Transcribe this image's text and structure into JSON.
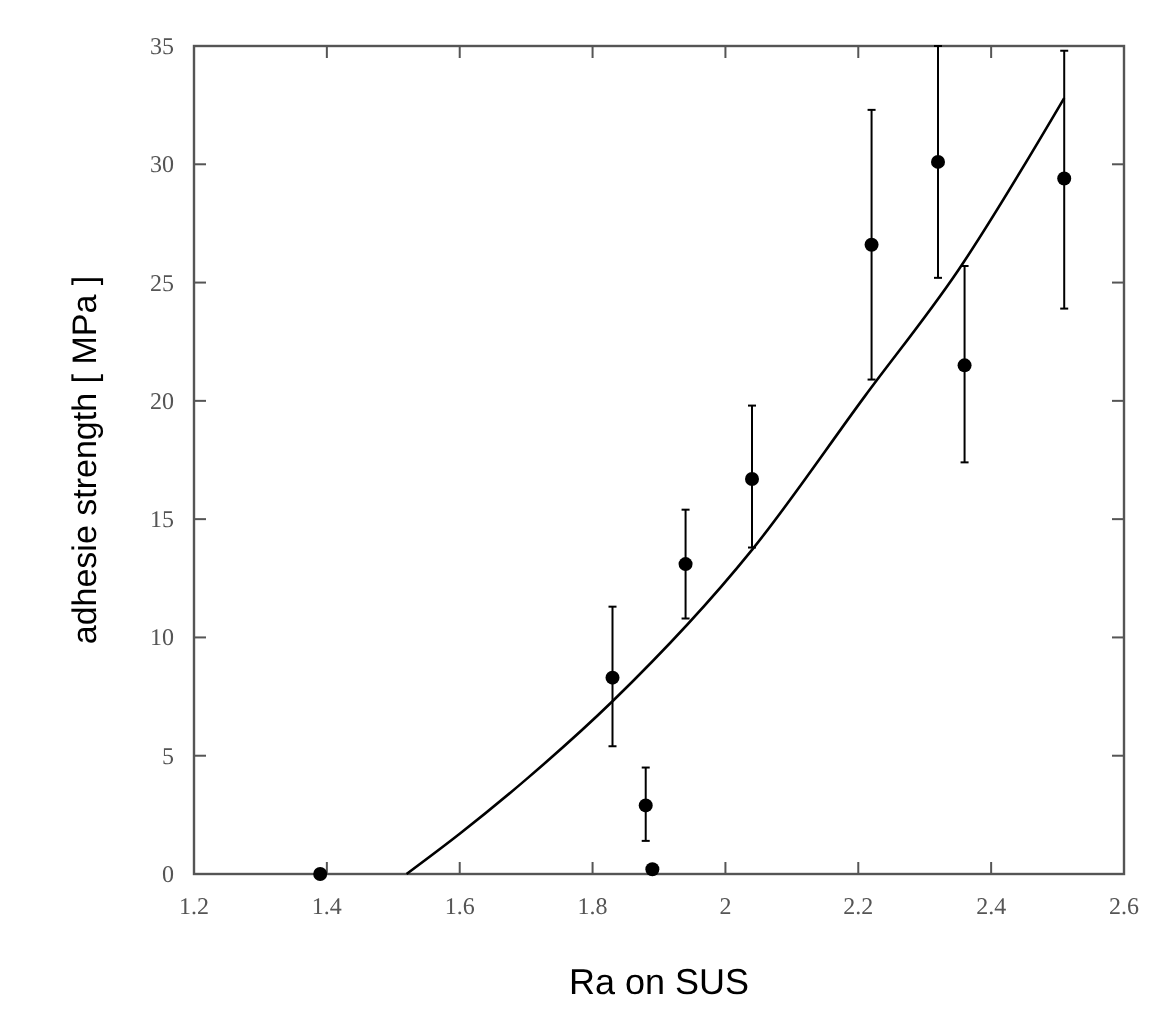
{
  "chart_data": {
    "type": "scatter",
    "xlabel": "Ra on SUS",
    "ylabel": "adhesie strength [ MPa ]",
    "xlim": [
      1.2,
      2.6
    ],
    "xticks": [
      1.2,
      1.4,
      1.6,
      1.8,
      2,
      2.2,
      2.4,
      2.6
    ],
    "ylim": [
      0,
      35
    ],
    "yticks": [
      0,
      5,
      10,
      15,
      20,
      25,
      30,
      35
    ],
    "grid": false,
    "series": [
      {
        "color": "#000000",
        "marker": "circle",
        "x": [
          1.39,
          1.89,
          1.88,
          1.83,
          1.94,
          2.04,
          2.22,
          2.32,
          2.36,
          2.51
        ],
        "values": [
          0,
          0.2,
          2.9,
          8.3,
          13.1,
          16.7,
          26.6,
          30.1,
          21.5,
          29.4
        ],
        "errors": [
          null,
          null,
          [
            1.4,
            4.5
          ],
          [
            5.4,
            11.3
          ],
          [
            10.8,
            15.4
          ],
          [
            13.8,
            19.8
          ],
          [
            20.9,
            32.3
          ],
          [
            25.2,
            35
          ],
          [
            17.4,
            25.7
          ],
          [
            23.9,
            34.8
          ]
        ]
      },
      {
        "type": "line",
        "color": "#000000",
        "marker": "none",
        "line_style": "solid",
        "x": [
          1.52,
          1.6,
          1.7,
          1.83,
          2.04,
          2.21,
          2.35,
          2.51
        ],
        "values": [
          0,
          1.7,
          4,
          7.3,
          13.7,
          20.2,
          25.5,
          32.8
        ]
      }
    ]
  }
}
